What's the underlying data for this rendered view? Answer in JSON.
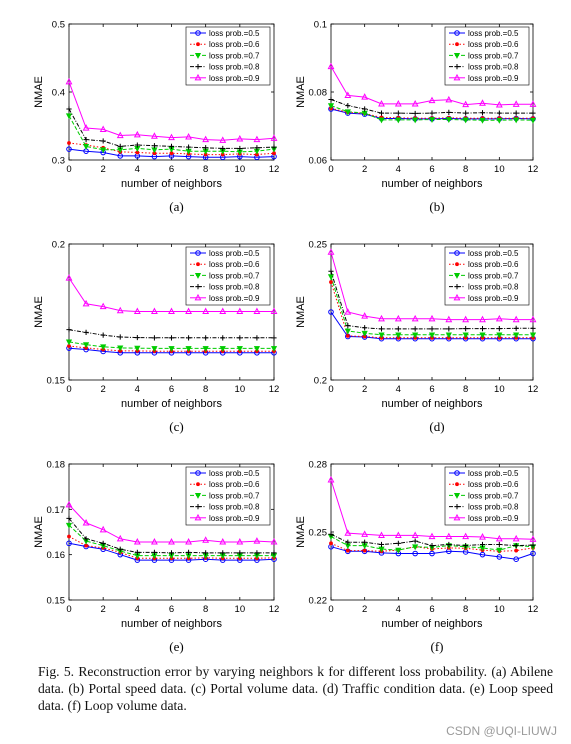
{
  "figure": {
    "caption": "Fig. 5.    Reconstruction error by varying neighbors k for different loss probability. (a) Abilene data. (b) Portal speed data. (c) Portal volume data. (d) Traffic condition data. (e) Loop speed data. (f) Loop volume data.",
    "watermark": "CSDN @UQI-LIUWJ"
  },
  "series_styles": [
    {
      "name": "loss prob.=0.5",
      "color": "#0000ff",
      "marker": "circle",
      "dash": ""
    },
    {
      "name": "loss prob.=0.6",
      "color": "#ff0000",
      "marker": "dot",
      "dash": "1.5,2"
    },
    {
      "name": "loss prob.=0.7",
      "color": "#00cc00",
      "marker": "triangle-down",
      "dash": "4,2"
    },
    {
      "name": "loss prob.=0.8",
      "color": "#000000",
      "marker": "plus",
      "dash": "4,1.5,1,1.5"
    },
    {
      "name": "loss prob.=0.9",
      "color": "#ff00ff",
      "marker": "triangle-up",
      "dash": ""
    }
  ],
  "chart_data": [
    {
      "type": "line",
      "panel_label": "(a)",
      "xlabel": "number of neighbors",
      "ylabel": "NMAE",
      "xlim": [
        0,
        12
      ],
      "ylim": [
        0.3,
        0.5
      ],
      "xticks": [
        0,
        2,
        4,
        6,
        8,
        10,
        12
      ],
      "yticks": [
        0.3,
        0.4,
        0.5
      ],
      "ytick_labels": [
        "0.3",
        "0.4",
        "0.5"
      ],
      "legend_position": "top-right",
      "grid": false,
      "x": [
        0,
        1,
        2,
        3,
        4,
        5,
        6,
        7,
        8,
        9,
        10,
        11,
        12
      ],
      "series": [
        {
          "name": "loss prob.=0.5",
          "values": [
            0.316,
            0.313,
            0.311,
            0.306,
            0.306,
            0.305,
            0.306,
            0.305,
            0.304,
            0.304,
            0.305,
            0.304,
            0.305
          ]
        },
        {
          "name": "loss prob.=0.6",
          "values": [
            0.325,
            0.322,
            0.318,
            0.312,
            0.311,
            0.31,
            0.31,
            0.309,
            0.308,
            0.308,
            0.309,
            0.308,
            0.31
          ]
        },
        {
          "name": "loss prob.=0.7",
          "values": [
            0.365,
            0.32,
            0.315,
            0.315,
            0.317,
            0.315,
            0.316,
            0.313,
            0.313,
            0.313,
            0.312,
            0.313,
            0.316
          ]
        },
        {
          "name": "loss prob.=0.8",
          "values": [
            0.375,
            0.33,
            0.328,
            0.32,
            0.322,
            0.321,
            0.32,
            0.319,
            0.318,
            0.317,
            0.317,
            0.318,
            0.319
          ]
        },
        {
          "name": "loss prob.=0.9",
          "values": [
            0.415,
            0.347,
            0.345,
            0.336,
            0.337,
            0.335,
            0.333,
            0.334,
            0.33,
            0.329,
            0.331,
            0.33,
            0.332
          ]
        }
      ]
    },
    {
      "type": "line",
      "panel_label": "(b)",
      "xlabel": "number of neighbors",
      "ylabel": "NMAE",
      "xlim": [
        0,
        12
      ],
      "ylim": [
        0.06,
        0.1
      ],
      "xticks": [
        0,
        2,
        4,
        6,
        8,
        10,
        12
      ],
      "yticks": [
        0.06,
        0.08,
        0.1
      ],
      "ytick_labels": [
        "0.06",
        "0.08",
        "0.1"
      ],
      "legend_position": "top-right",
      "grid": false,
      "x": [
        0,
        1,
        2,
        3,
        4,
        5,
        6,
        7,
        8,
        9,
        10,
        11,
        12
      ],
      "series": [
        {
          "name": "loss prob.=0.5",
          "values": [
            0.075,
            0.0738,
            0.0735,
            0.0722,
            0.0722,
            0.0721,
            0.0721,
            0.0722,
            0.0721,
            0.0721,
            0.0721,
            0.0722,
            0.0721
          ]
        },
        {
          "name": "loss prob.=0.6",
          "values": [
            0.0752,
            0.074,
            0.0737,
            0.0725,
            0.0724,
            0.0723,
            0.0723,
            0.0724,
            0.0723,
            0.0723,
            0.0723,
            0.0723,
            0.0723
          ]
        },
        {
          "name": "loss prob.=0.7",
          "values": [
            0.076,
            0.0742,
            0.0738,
            0.0718,
            0.0718,
            0.0718,
            0.0719,
            0.0719,
            0.0718,
            0.0717,
            0.0717,
            0.0718,
            0.0717
          ]
        },
        {
          "name": "loss prob.=0.8",
          "values": [
            0.0778,
            0.076,
            0.075,
            0.0738,
            0.0738,
            0.0737,
            0.0738,
            0.074,
            0.0738,
            0.0739,
            0.0738,
            0.0738,
            0.0738
          ]
        },
        {
          "name": "loss prob.=0.9",
          "values": [
            0.0875,
            0.079,
            0.0785,
            0.0765,
            0.0765,
            0.0765,
            0.0775,
            0.0777,
            0.0763,
            0.0767,
            0.0762,
            0.0764,
            0.0764
          ]
        }
      ]
    },
    {
      "type": "line",
      "panel_label": "(c)",
      "xlabel": "number of neighbors",
      "ylabel": "NMAE",
      "xlim": [
        0,
        12
      ],
      "ylim": [
        0.15,
        0.2
      ],
      "xticks": [
        0,
        2,
        4,
        6,
        8,
        10,
        12
      ],
      "yticks": [
        0.15,
        0.2
      ],
      "ytick_labels": [
        "0.15",
        "0.2"
      ],
      "legend_position": "top-right",
      "grid": false,
      "x": [
        0,
        1,
        2,
        3,
        4,
        5,
        6,
        7,
        8,
        9,
        10,
        11,
        12
      ],
      "series": [
        {
          "name": "loss prob.=0.5",
          "values": [
            0.1617,
            0.1612,
            0.1605,
            0.16,
            0.16,
            0.16,
            0.16,
            0.16,
            0.16,
            0.16,
            0.16,
            0.16,
            0.16
          ]
        },
        {
          "name": "loss prob.=0.6",
          "values": [
            0.1625,
            0.1618,
            0.1612,
            0.1607,
            0.1607,
            0.1606,
            0.1606,
            0.1606,
            0.1606,
            0.1606,
            0.1606,
            0.1606,
            0.1606
          ]
        },
        {
          "name": "loss prob.=0.7",
          "values": [
            0.164,
            0.163,
            0.1622,
            0.1618,
            0.1617,
            0.1616,
            0.1616,
            0.1616,
            0.1616,
            0.1616,
            0.1616,
            0.1616,
            0.1616
          ]
        },
        {
          "name": "loss prob.=0.8",
          "values": [
            0.1685,
            0.1675,
            0.1665,
            0.1658,
            0.1656,
            0.1655,
            0.1655,
            0.1655,
            0.1655,
            0.1655,
            0.1655,
            0.1655,
            0.1655
          ]
        },
        {
          "name": "loss prob.=0.9",
          "values": [
            0.1875,
            0.178,
            0.177,
            0.1755,
            0.1752,
            0.1752,
            0.1752,
            0.1752,
            0.1752,
            0.1752,
            0.1752,
            0.1752,
            0.1752
          ]
        }
      ]
    },
    {
      "type": "line",
      "panel_label": "(d)",
      "xlabel": "number of neighbors",
      "ylabel": "NMAE",
      "xlim": [
        0,
        12
      ],
      "ylim": [
        0.2,
        0.25
      ],
      "xticks": [
        0,
        2,
        4,
        6,
        8,
        10,
        12
      ],
      "yticks": [
        0.2,
        0.25
      ],
      "ytick_labels": [
        "0.2",
        "0.25"
      ],
      "legend_position": "top-right",
      "grid": false,
      "x": [
        0,
        1,
        2,
        3,
        4,
        5,
        6,
        7,
        8,
        9,
        10,
        11,
        12
      ],
      "series": [
        {
          "name": "loss prob.=0.5",
          "values": [
            0.225,
            0.216,
            0.2158,
            0.2152,
            0.2152,
            0.2152,
            0.2152,
            0.2152,
            0.2152,
            0.2152,
            0.2152,
            0.2152,
            0.2152
          ]
        },
        {
          "name": "loss prob.=0.6",
          "values": [
            0.236,
            0.2162,
            0.216,
            0.2155,
            0.2155,
            0.2155,
            0.2155,
            0.2155,
            0.2155,
            0.2155,
            0.2155,
            0.2155,
            0.2155
          ]
        },
        {
          "name": "loss prob.=0.7",
          "values": [
            0.238,
            0.218,
            0.2172,
            0.2166,
            0.2166,
            0.2166,
            0.2166,
            0.2166,
            0.2166,
            0.2166,
            0.2166,
            0.2166,
            0.2166
          ]
        },
        {
          "name": "loss prob.=0.8",
          "values": [
            0.24,
            0.22,
            0.2192,
            0.2188,
            0.2188,
            0.2188,
            0.2188,
            0.2188,
            0.2189,
            0.2189,
            0.2189,
            0.219,
            0.219
          ]
        },
        {
          "name": "loss prob.=0.9",
          "values": [
            0.247,
            0.225,
            0.2235,
            0.2225,
            0.2225,
            0.2225,
            0.2225,
            0.2222,
            0.2222,
            0.2222,
            0.2225,
            0.2222,
            0.2222
          ]
        }
      ]
    },
    {
      "type": "line",
      "panel_label": "(e)",
      "xlabel": "number of neighbors",
      "ylabel": "NMAE",
      "xlim": [
        0,
        12
      ],
      "ylim": [
        0.15,
        0.18
      ],
      "xticks": [
        0,
        2,
        4,
        6,
        8,
        10,
        12
      ],
      "yticks": [
        0.15,
        0.16,
        0.17,
        0.18
      ],
      "ytick_labels": [
        "0.15",
        "0.16",
        "0.17",
        "0.18"
      ],
      "legend_position": "top-right",
      "grid": false,
      "x": [
        0,
        1,
        2,
        3,
        4,
        5,
        6,
        7,
        8,
        9,
        10,
        11,
        12
      ],
      "series": [
        {
          "name": "loss prob.=0.5",
          "values": [
            0.1625,
            0.1618,
            0.1612,
            0.16,
            0.1588,
            0.1588,
            0.1588,
            0.1588,
            0.159,
            0.1588,
            0.1588,
            0.1588,
            0.159
          ]
        },
        {
          "name": "loss prob.=0.6",
          "values": [
            0.164,
            0.162,
            0.1615,
            0.1605,
            0.1592,
            0.1592,
            0.1592,
            0.1592,
            0.1593,
            0.1592,
            0.1592,
            0.1592,
            0.1593
          ]
        },
        {
          "name": "loss prob.=0.7",
          "values": [
            0.1665,
            0.163,
            0.162,
            0.1608,
            0.1598,
            0.1598,
            0.1598,
            0.1598,
            0.1598,
            0.1598,
            0.1598,
            0.1598,
            0.1598
          ]
        },
        {
          "name": "loss prob.=0.8",
          "values": [
            0.168,
            0.1635,
            0.1625,
            0.1612,
            0.1605,
            0.1605,
            0.1604,
            0.1605,
            0.1604,
            0.1604,
            0.1604,
            0.1604,
            0.1604
          ]
        },
        {
          "name": "loss prob.=0.9",
          "values": [
            0.171,
            0.167,
            0.1655,
            0.1635,
            0.1628,
            0.1628,
            0.1628,
            0.1628,
            0.1632,
            0.1628,
            0.1628,
            0.163,
            0.1628
          ]
        }
      ]
    },
    {
      "type": "line",
      "panel_label": "(f)",
      "xlabel": "number of neighbors",
      "ylabel": "NMAE",
      "xlim": [
        0,
        12
      ],
      "ylim": [
        0.22,
        0.28
      ],
      "xticks": [
        0,
        2,
        4,
        6,
        8,
        10,
        12
      ],
      "yticks": [
        0.22,
        0.25,
        0.28
      ],
      "ytick_labels": [
        "0.22",
        "0.25",
        "0.28"
      ],
      "legend_position": "top-right",
      "grid": false,
      "x": [
        0,
        1,
        2,
        3,
        4,
        5,
        6,
        7,
        8,
        9,
        10,
        11,
        12
      ],
      "series": [
        {
          "name": "loss prob.=0.5",
          "values": [
            0.2435,
            0.2415,
            0.2415,
            0.2408,
            0.2405,
            0.2405,
            0.2405,
            0.2415,
            0.2412,
            0.24,
            0.239,
            0.238,
            0.2405
          ]
        },
        {
          "name": "loss prob.=0.6",
          "values": [
            0.245,
            0.2418,
            0.2418,
            0.2415,
            0.242,
            0.2435,
            0.2425,
            0.243,
            0.2428,
            0.242,
            0.2415,
            0.2418,
            0.243
          ]
        },
        {
          "name": "loss prob.=0.7",
          "values": [
            0.248,
            0.244,
            0.244,
            0.2425,
            0.242,
            0.2435,
            0.2432,
            0.244,
            0.2435,
            0.243,
            0.242,
            0.244,
            0.2435
          ]
        },
        {
          "name": "loss prob.=0.8",
          "values": [
            0.249,
            0.2455,
            0.2455,
            0.2445,
            0.245,
            0.246,
            0.244,
            0.2445,
            0.244,
            0.2445,
            0.2445,
            0.244,
            0.2442
          ]
        },
        {
          "name": "loss prob.=0.9",
          "values": [
            0.273,
            0.2495,
            0.249,
            0.2485,
            0.2485,
            0.2485,
            0.248,
            0.248,
            0.248,
            0.2478,
            0.247,
            0.247,
            0.2468
          ]
        }
      ]
    }
  ]
}
